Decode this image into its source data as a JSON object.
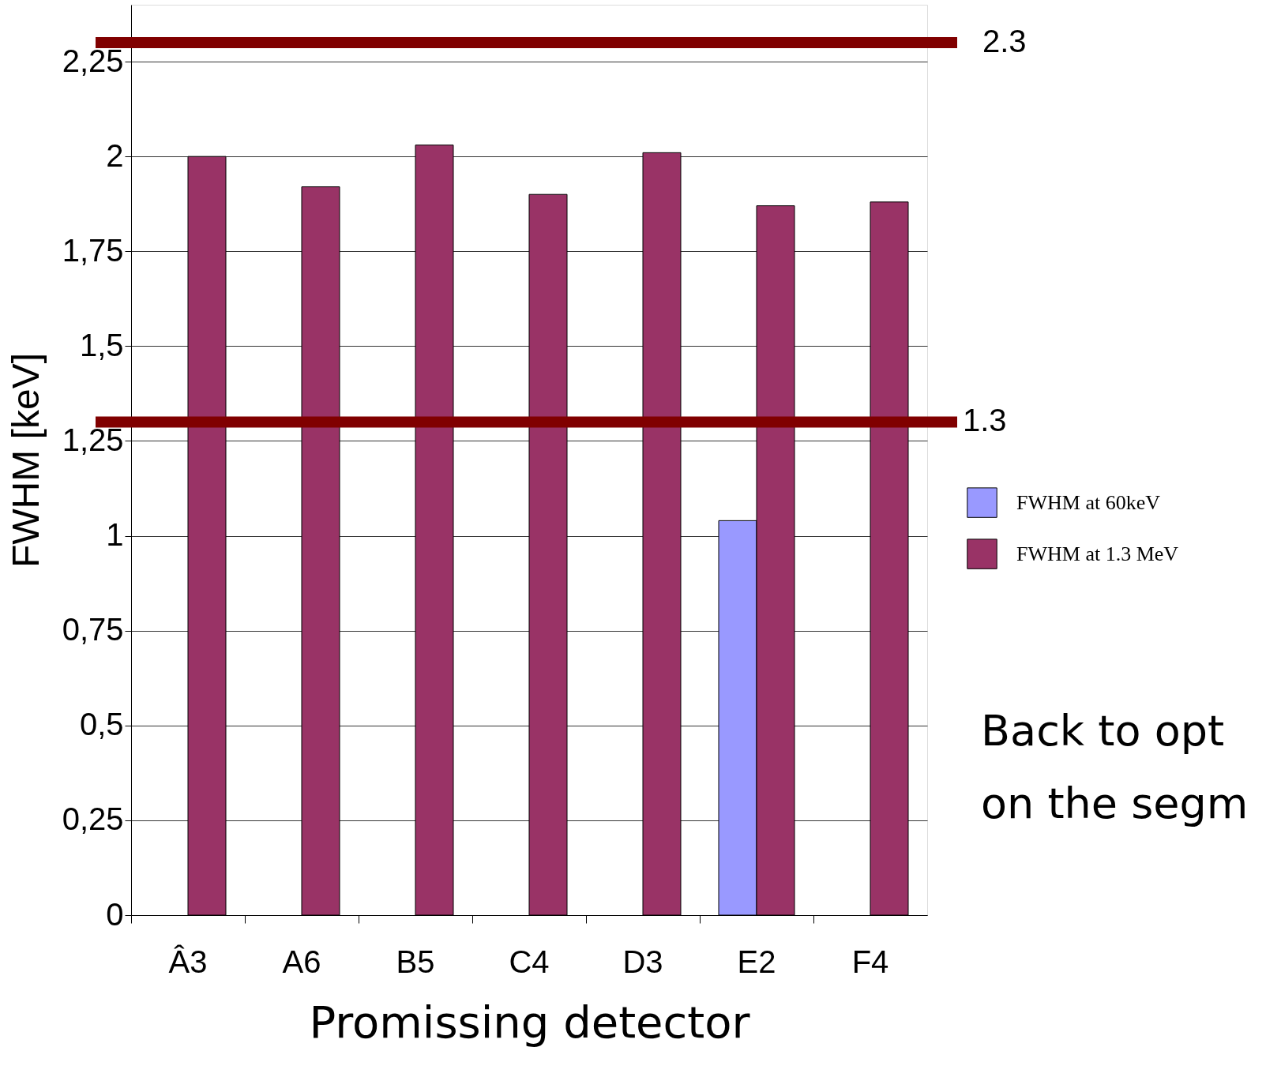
{
  "chart_data": {
    "type": "bar",
    "xlabel": "Promissing detector",
    "ylabel": "FWHM [keV]",
    "categories": [
      "Â3",
      "A6",
      "B5",
      "C4",
      "D3",
      "E2",
      "F4"
    ],
    "series": [
      {
        "name": "FWHM at 60keV",
        "color": "#9999ff",
        "values": [
          null,
          null,
          null,
          null,
          null,
          1.04,
          null
        ]
      },
      {
        "name": "FWHM at 1.3 MeV",
        "color": "#993366",
        "values": [
          2.0,
          1.92,
          2.03,
          1.9,
          2.01,
          1.87,
          1.88
        ]
      }
    ],
    "ylim": [
      0,
      2.4
    ],
    "yticks": [
      0,
      {
        "value": 0.25,
        "label": "0,25"
      },
      {
        "value": 0.5,
        "label": "0,5"
      },
      {
        "value": 0.75,
        "label": "0,75"
      },
      1,
      {
        "value": 1.25,
        "label": "1,25"
      },
      {
        "value": 1.5,
        "label": "1,5"
      },
      {
        "value": 1.75,
        "label": "1,75"
      },
      2,
      {
        "value": 2.25,
        "label": "2,25"
      }
    ],
    "grid": "y",
    "legend": "right",
    "ref_lines": [
      {
        "axis": "y",
        "value": 2.3,
        "label": "2.3",
        "color": "#800000"
      },
      {
        "axis": "y",
        "value": 1.3,
        "label": "1.3",
        "color": "#800000"
      }
    ],
    "annotations": [
      "Back to opt",
      "on the segm"
    ]
  }
}
